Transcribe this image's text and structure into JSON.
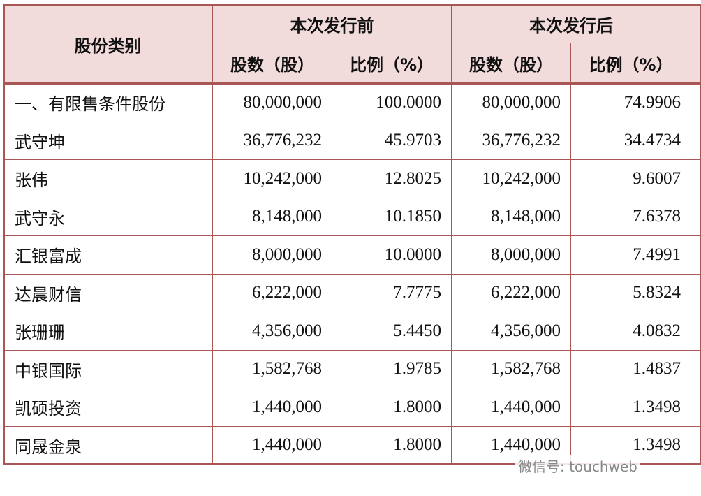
{
  "table": {
    "header": {
      "category": "股份类别",
      "groups": [
        "本次发行前",
        "本次发行后"
      ],
      "columns": [
        "股数（股）",
        "比例（%）",
        "股数（股）",
        "比例（%）"
      ]
    },
    "rows": [
      [
        "一、有限售条件股份",
        "80,000,000",
        "100.0000",
        "80,000,000",
        "74.9906"
      ],
      [
        "武守坤",
        "36,776,232",
        "45.9703",
        "36,776,232",
        "34.4734"
      ],
      [
        "张伟",
        "10,242,000",
        "12.8025",
        "10,242,000",
        "9.6007"
      ],
      [
        "武守永",
        "8,148,000",
        "10.1850",
        "8,148,000",
        "7.6378"
      ],
      [
        "汇银富成",
        "8,000,000",
        "10.0000",
        "8,000,000",
        "7.4991"
      ],
      [
        "达晨财信",
        "6,222,000",
        "7.7775",
        "6,222,000",
        "5.8324"
      ],
      [
        "张珊珊",
        "4,356,000",
        "5.4450",
        "4,356,000",
        "4.0832"
      ],
      [
        "中银国际",
        "1,582,768",
        "1.9785",
        "1,582,768",
        "1.4837"
      ],
      [
        "凯硕投资",
        "1,440,000",
        "1.8000",
        "1,440,000",
        "1.3498"
      ],
      [
        "同晟金泉",
        "1,440,000",
        "1.8000",
        "1,440,000",
        "1.3498"
      ]
    ]
  },
  "watermark": "微信号: touchweb"
}
